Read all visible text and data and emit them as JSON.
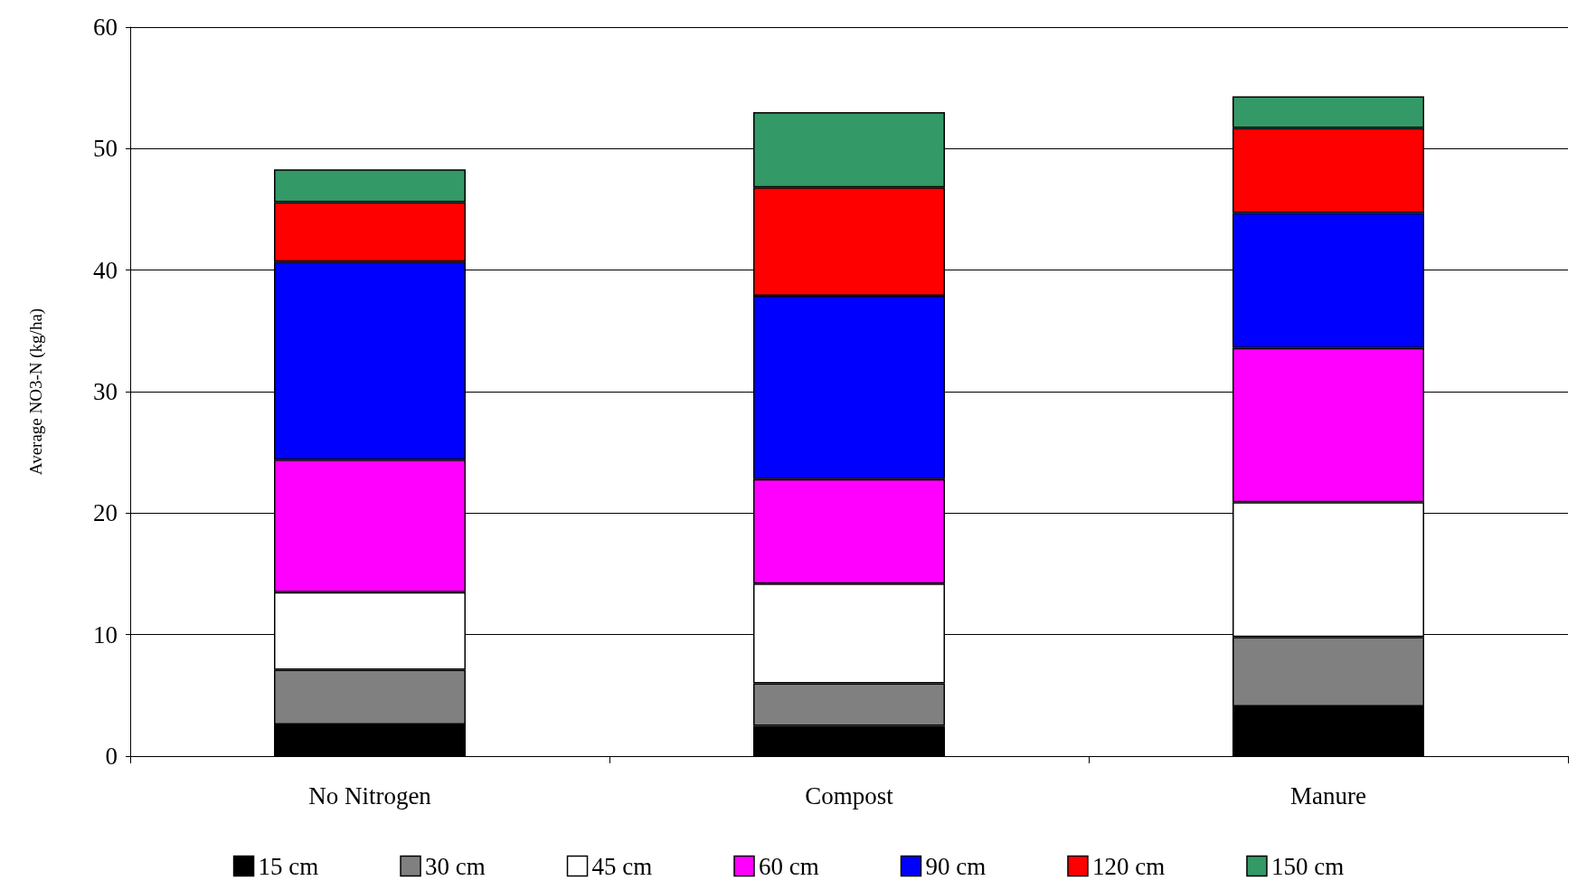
{
  "chart_data": {
    "type": "bar",
    "stacked": true,
    "ylabel": "Average NO3-N (kg/ha)",
    "categories": [
      "No Nitrogen",
      "Compost",
      "Manure"
    ],
    "series": [
      {
        "name": "15 cm",
        "color": "#000000",
        "values": [
          2.6,
          2.5,
          4.1
        ]
      },
      {
        "name": "30 cm",
        "color": "#808080",
        "values": [
          4.5,
          3.5,
          5.7
        ]
      },
      {
        "name": "45 cm",
        "color": "#ffffff",
        "values": [
          6.4,
          8.2,
          11.1
        ]
      },
      {
        "name": "60 cm",
        "color": "#ff00ff",
        "values": [
          10.9,
          8.6,
          12.7
        ]
      },
      {
        "name": "90 cm",
        "color": "#0000ff",
        "values": [
          16.3,
          15.1,
          11.1
        ]
      },
      {
        "name": "120 cm",
        "color": "#ff0000",
        "values": [
          4.9,
          8.9,
          7.0
        ]
      },
      {
        "name": "150 cm",
        "color": "#339966",
        "values": [
          2.7,
          6.2,
          2.6
        ]
      }
    ],
    "ylim": [
      0,
      60
    ],
    "yticks": [
      0,
      10,
      20,
      30,
      40,
      50,
      60
    ],
    "grid": "y",
    "legend": "bottom"
  }
}
